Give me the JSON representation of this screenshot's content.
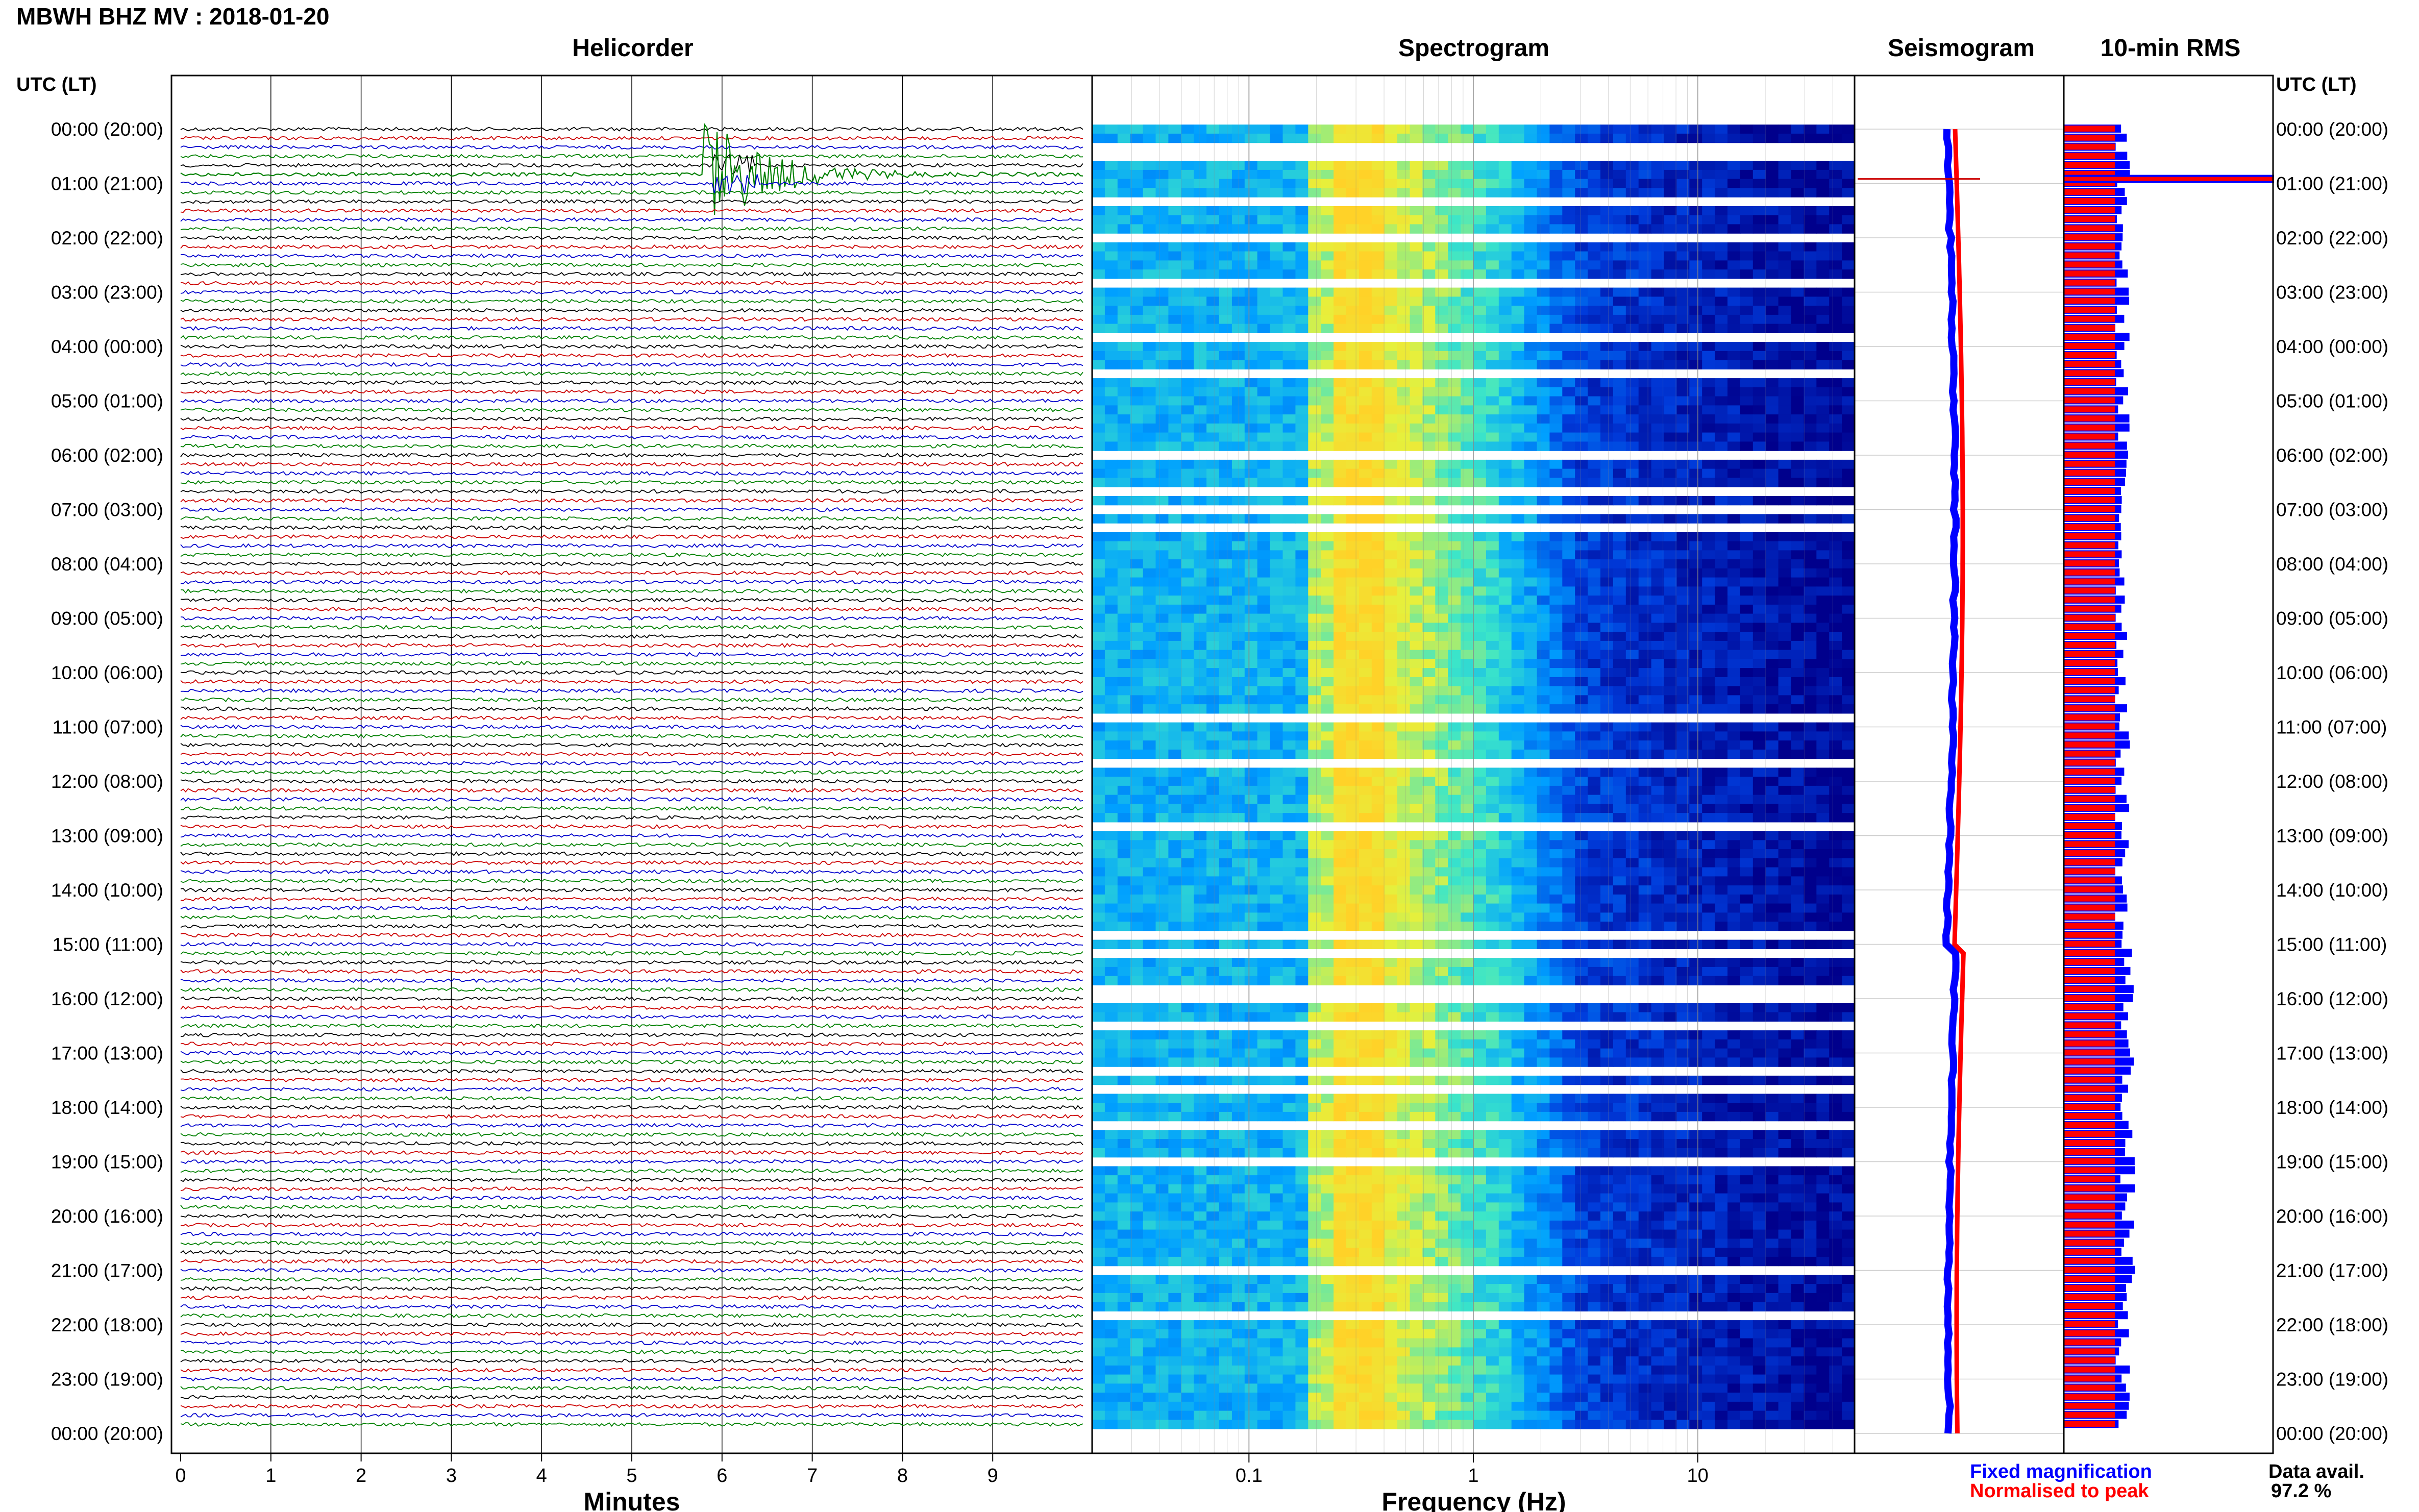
{
  "title": "MBWH BHZ MV : 2018-01-20",
  "panels": {
    "helicorder": "Helicorder",
    "spectrogram": "Spectrogram",
    "seismogram": "Seismogram",
    "rms": "10-min RMS"
  },
  "axis_header_left": "UTC (LT)",
  "axis_header_right": "UTC (LT)",
  "time_labels": [
    "00:00 (20:00)",
    "01:00 (21:00)",
    "02:00 (22:00)",
    "03:00 (23:00)",
    "04:00 (00:00)",
    "05:00 (01:00)",
    "06:00 (02:00)",
    "07:00 (03:00)",
    "08:00 (04:00)",
    "09:00 (05:00)",
    "10:00 (06:00)",
    "11:00 (07:00)",
    "12:00 (08:00)",
    "13:00 (09:00)",
    "14:00 (10:00)",
    "15:00 (11:00)",
    "16:00 (12:00)",
    "17:00 (13:00)",
    "18:00 (14:00)",
    "19:00 (15:00)",
    "20:00 (16:00)",
    "21:00 (17:00)",
    "22:00 (18:00)",
    "23:00 (19:00)",
    "00:00 (20:00)"
  ],
  "helicorder_xlabel": "Minutes",
  "helicorder_ticks": [
    "0",
    "1",
    "2",
    "3",
    "4",
    "5",
    "6",
    "7",
    "8",
    "9"
  ],
  "spectrogram_xlabel": "Frequency (Hz)",
  "spectrogram_ticks": [
    "0.1",
    "1",
    "10"
  ],
  "legend": {
    "fixed": "Fixed magnification",
    "normalised": "Normalised to peak"
  },
  "availability": {
    "label": "Data avail.",
    "value": "97.2 %"
  },
  "colors": {
    "fixed": "#0000ff",
    "normalised": "#ff0000",
    "trace_cycle": [
      "#000000",
      "#cc0000",
      "#0000cc",
      "#008000"
    ]
  },
  "chart_data": {
    "type": "heatmap",
    "station": "MBWH BHZ MV",
    "date": "2018-01-20",
    "hours": 24,
    "minutes_range": [
      0,
      10
    ],
    "frequency_range_hz": [
      0.02,
      50
    ],
    "frequency_scale": "log",
    "events": [
      {
        "time_utc": "00:50",
        "minute": 6,
        "description": "seismic event"
      }
    ],
    "spectrogram_gaps_utc": [
      "00:20",
      "00:30",
      "01:20",
      "02:00",
      "02:50",
      "03:50",
      "04:30",
      "06:00",
      "06:40",
      "07:00",
      "07:20",
      "10:50",
      "11:40",
      "12:50",
      "14:50",
      "15:10",
      "15:50",
      "16:00",
      "16:30",
      "17:20",
      "17:40",
      "18:20",
      "19:00",
      "21:00",
      "21:50"
    ],
    "rms_fixed_series": "Fixed magnification",
    "rms_normalised_series": "Normalised to peak",
    "data_availability_percent": 97.2
  }
}
